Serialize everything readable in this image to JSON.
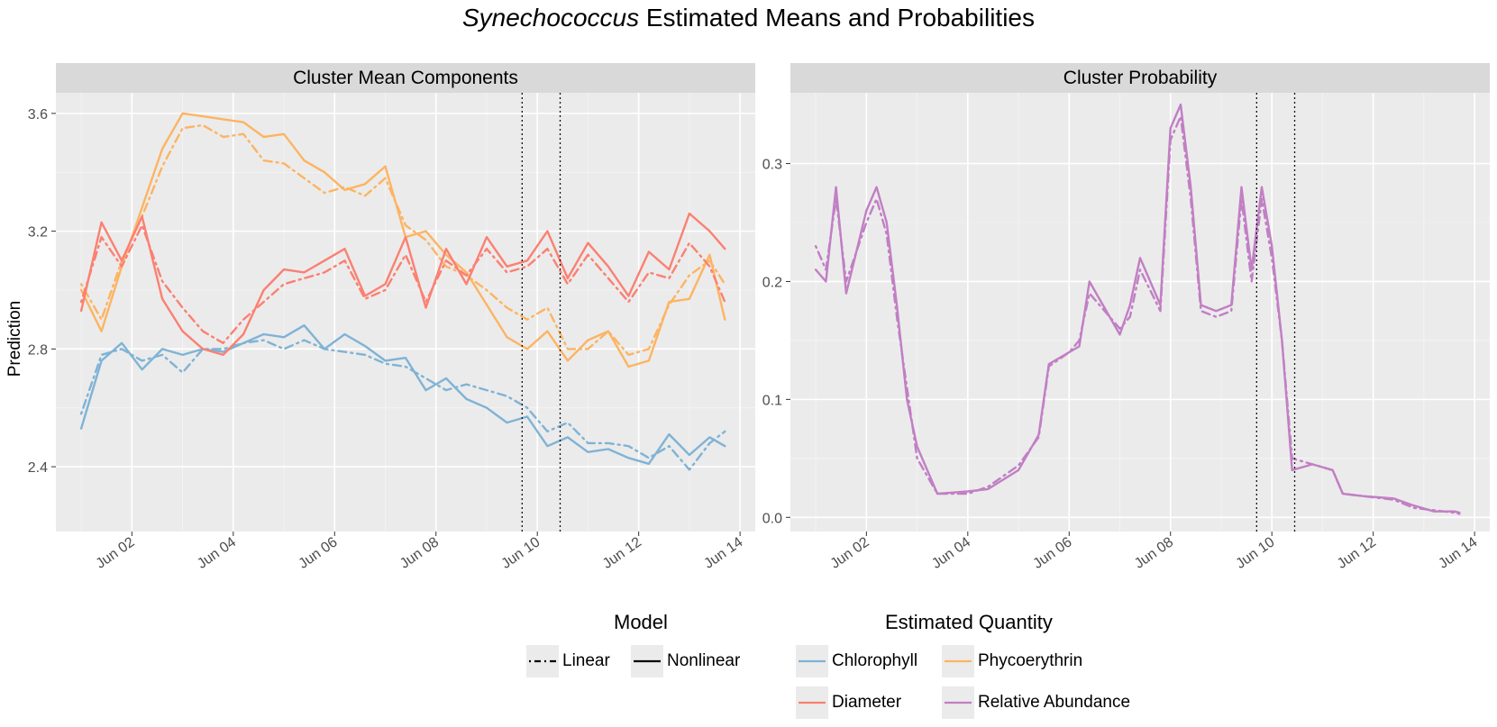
{
  "title_italic": "Synechococcus",
  "title_rest": " Estimated Means and Probabilities",
  "y_label": "Prediction",
  "panels": [
    {
      "title": "Cluster Mean Components",
      "yticks": [
        "3.6",
        "3.2",
        "2.8",
        "2.4"
      ]
    },
    {
      "title": "Cluster Probability",
      "yticks": [
        "0.3",
        "0.2",
        "0.1",
        "0.0"
      ]
    }
  ],
  "xticks": [
    "Jun 02",
    "Jun 04",
    "Jun 06",
    "Jun 08",
    "Jun 10",
    "Jun 12",
    "Jun 14"
  ],
  "legend": {
    "model_title": "Model",
    "model_items": [
      {
        "label": "Linear",
        "dash": "linear"
      },
      {
        "label": "Nonlinear",
        "dash": "nonlinear"
      }
    ],
    "quantity_title": "Estimated Quantity",
    "quantity_items": [
      {
        "label": "Chlorophyll",
        "color": "#7fb3d5"
      },
      {
        "label": "Phycoerythrin",
        "color": "#fdb462"
      },
      {
        "label": "Diameter",
        "color": "#fb8072"
      },
      {
        "label": "Relative Abundance",
        "color": "#c17fc4"
      }
    ]
  },
  "chart_data": [
    {
      "type": "line",
      "title": "Cluster Mean Components",
      "xlabel": "",
      "ylabel": "Prediction",
      "x_unit": "days in June",
      "xlim": [
        0.5,
        14.3
      ],
      "ylim": [
        2.18,
        3.67
      ],
      "vlines": [
        9.7,
        10.45
      ],
      "x": [
        1.0,
        1.4,
        1.8,
        2.2,
        2.6,
        3.0,
        3.4,
        3.8,
        4.2,
        4.6,
        5.0,
        5.4,
        5.8,
        6.2,
        6.6,
        7.0,
        7.4,
        7.8,
        8.2,
        8.6,
        9.0,
        9.4,
        9.8,
        10.2,
        10.6,
        11.0,
        11.4,
        11.8,
        12.2,
        12.6,
        13.0,
        13.4,
        13.7
      ],
      "series": [
        {
          "name": "Chlorophyll",
          "model": "Nonlinear",
          "color": "#7fb3d5",
          "values": [
            2.53,
            2.76,
            2.82,
            2.73,
            2.8,
            2.78,
            2.8,
            2.79,
            2.82,
            2.85,
            2.84,
            2.88,
            2.8,
            2.85,
            2.81,
            2.76,
            2.77,
            2.66,
            2.7,
            2.63,
            2.6,
            2.55,
            2.57,
            2.47,
            2.5,
            2.45,
            2.46,
            2.43,
            2.41,
            2.51,
            2.44,
            2.5,
            2.47
          ]
        },
        {
          "name": "Chlorophyll",
          "model": "Linear",
          "color": "#7fb3d5",
          "values": [
            2.58,
            2.78,
            2.8,
            2.76,
            2.78,
            2.72,
            2.8,
            2.8,
            2.82,
            2.83,
            2.8,
            2.83,
            2.8,
            2.79,
            2.78,
            2.75,
            2.74,
            2.7,
            2.66,
            2.68,
            2.66,
            2.64,
            2.6,
            2.52,
            2.55,
            2.48,
            2.48,
            2.47,
            2.43,
            2.47,
            2.39,
            2.48,
            2.52
          ]
        },
        {
          "name": "Phycoerythrin",
          "model": "Nonlinear",
          "color": "#fdb462",
          "values": [
            3.0,
            2.86,
            3.08,
            3.28,
            3.48,
            3.6,
            3.59,
            3.58,
            3.57,
            3.52,
            3.53,
            3.44,
            3.4,
            3.34,
            3.36,
            3.42,
            3.18,
            3.2,
            3.12,
            3.06,
            2.95,
            2.84,
            2.8,
            2.86,
            2.76,
            2.83,
            2.86,
            2.74,
            2.76,
            2.96,
            2.97,
            3.12,
            2.9
          ]
        },
        {
          "name": "Phycoerythrin",
          "model": "Linear",
          "color": "#fdb462",
          "values": [
            3.02,
            2.9,
            3.1,
            3.25,
            3.42,
            3.55,
            3.56,
            3.52,
            3.53,
            3.44,
            3.43,
            3.38,
            3.33,
            3.35,
            3.32,
            3.38,
            3.22,
            3.17,
            3.08,
            3.05,
            3.0,
            2.94,
            2.9,
            2.94,
            2.8,
            2.8,
            2.86,
            2.78,
            2.8,
            2.95,
            3.05,
            3.1,
            3.02
          ]
        },
        {
          "name": "Diameter",
          "model": "Nonlinear",
          "color": "#fb8072",
          "values": [
            2.93,
            3.23,
            3.1,
            3.25,
            2.97,
            2.86,
            2.8,
            2.78,
            2.85,
            3.0,
            3.07,
            3.06,
            3.1,
            3.14,
            2.98,
            3.02,
            3.18,
            2.94,
            3.14,
            3.02,
            3.18,
            3.08,
            3.1,
            3.2,
            3.04,
            3.16,
            3.08,
            2.98,
            3.13,
            3.07,
            3.26,
            3.2,
            3.14
          ]
        },
        {
          "name": "Diameter",
          "model": "Linear",
          "color": "#fb8072",
          "values": [
            2.96,
            3.18,
            3.08,
            3.22,
            3.03,
            2.94,
            2.86,
            2.82,
            2.9,
            2.96,
            3.02,
            3.04,
            3.06,
            3.1,
            2.97,
            3.0,
            3.12,
            2.96,
            3.1,
            3.05,
            3.14,
            3.06,
            3.08,
            3.14,
            3.02,
            3.12,
            3.04,
            2.96,
            3.06,
            3.04,
            3.16,
            3.08,
            2.96
          ]
        }
      ]
    },
    {
      "type": "line",
      "title": "Cluster Probability",
      "xlabel": "",
      "ylabel": "Prediction",
      "x_unit": "days in June",
      "xlim": [
        0.5,
        14.3
      ],
      "ylim": [
        -0.012,
        0.36
      ],
      "vlines": [
        9.7,
        10.45
      ],
      "x": [
        1.0,
        1.2,
        1.4,
        1.6,
        2.0,
        2.2,
        2.4,
        2.6,
        2.8,
        3.0,
        3.4,
        4.0,
        4.4,
        5.0,
        5.4,
        5.6,
        6.0,
        6.2,
        6.4,
        7.0,
        7.2,
        7.4,
        7.8,
        8.0,
        8.2,
        8.4,
        8.6,
        8.9,
        9.2,
        9.4,
        9.6,
        9.8,
        10.0,
        10.2,
        10.4,
        10.8,
        11.2,
        11.4,
        11.8,
        12.4,
        12.8,
        13.2,
        13.6,
        13.7
      ],
      "series": [
        {
          "name": "Relative Abundance",
          "model": "Nonlinear",
          "color": "#c17fc4",
          "values": [
            0.21,
            0.2,
            0.28,
            0.19,
            0.26,
            0.28,
            0.25,
            0.18,
            0.1,
            0.06,
            0.02,
            0.022,
            0.024,
            0.04,
            0.07,
            0.13,
            0.14,
            0.145,
            0.2,
            0.155,
            0.18,
            0.22,
            0.18,
            0.33,
            0.35,
            0.28,
            0.18,
            0.175,
            0.18,
            0.28,
            0.21,
            0.28,
            0.23,
            0.15,
            0.04,
            0.045,
            0.04,
            0.02,
            0.018,
            0.016,
            0.01,
            0.005,
            0.005,
            0.004
          ]
        },
        {
          "name": "Relative Abundance",
          "model": "Linear",
          "color": "#c17fc4",
          "values": [
            0.23,
            0.21,
            0.27,
            0.2,
            0.25,
            0.27,
            0.24,
            0.17,
            0.11,
            0.05,
            0.02,
            0.02,
            0.026,
            0.044,
            0.068,
            0.128,
            0.14,
            0.15,
            0.19,
            0.16,
            0.17,
            0.21,
            0.175,
            0.32,
            0.34,
            0.27,
            0.175,
            0.17,
            0.175,
            0.27,
            0.2,
            0.27,
            0.22,
            0.15,
            0.05,
            0.045,
            0.04,
            0.02,
            0.018,
            0.015,
            0.008,
            0.006,
            0.004,
            0.003
          ]
        }
      ]
    }
  ]
}
